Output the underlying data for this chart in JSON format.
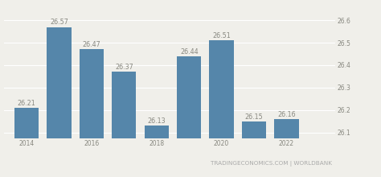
{
  "years": [
    2014,
    2015,
    2016,
    2017,
    2018,
    2019,
    2020,
    2021,
    2022
  ],
  "values": [
    26.21,
    26.57,
    26.47,
    26.37,
    26.13,
    26.44,
    26.51,
    26.15,
    26.16
  ],
  "bar_color": "#5586aa",
  "background_color": "#f0efea",
  "grid_color": "#ffffff",
  "ytick_values": [
    26.1,
    26.2,
    26.3,
    26.4,
    26.5,
    26.6
  ],
  "ytick_labels": [
    "26.1",
    "26.2",
    "26.3",
    "26.4",
    "26.5",
    "26.6"
  ],
  "ylim": [
    26.075,
    26.635
  ],
  "xlim": [
    2013.3,
    2023.5
  ],
  "xtick_years": [
    2014,
    2016,
    2018,
    2020,
    2022
  ],
  "bar_width": 0.75,
  "watermark": "TRADINGECONOMICS.COM | WORLDBANK",
  "label_fontsize": 5.5,
  "bar_label_fontsize": 5.8,
  "watermark_fontsize": 5.2,
  "label_color": "#888880",
  "watermark_color": "#aaaaaa"
}
